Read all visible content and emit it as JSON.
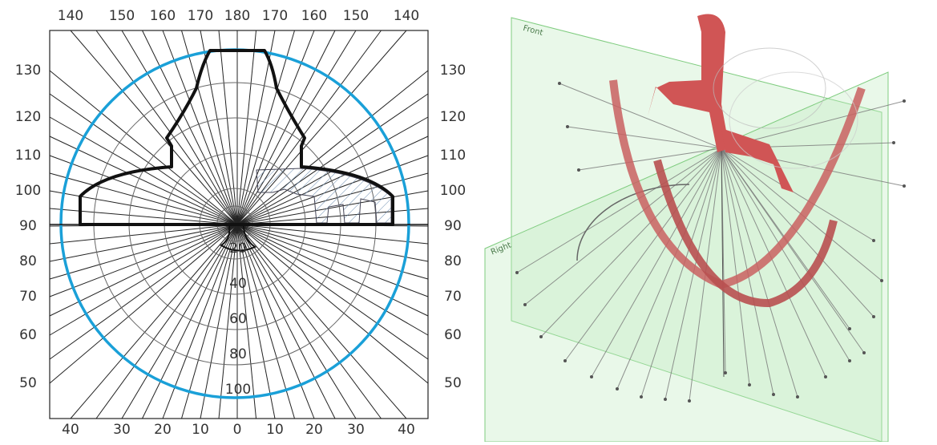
{
  "left_panel": {
    "top_labels": [
      "140",
      "150",
      "160",
      "170",
      "180",
      "170",
      "160",
      "150",
      "140"
    ],
    "left_labels": [
      "130",
      "120",
      "110",
      "100",
      "90",
      "80",
      "70",
      "60",
      "50"
    ],
    "right_labels": [
      "130",
      "120",
      "110",
      "100",
      "90",
      "80",
      "70",
      "60",
      "50"
    ],
    "bottom_labels": [
      "40",
      "30",
      "20",
      "10",
      "0",
      "10",
      "20",
      "30",
      "40"
    ],
    "radial_labels": [
      "20",
      "40",
      "60",
      "80",
      "100"
    ]
  },
  "right_panel": {
    "plane_labels": [
      "Front",
      "Right"
    ]
  }
}
